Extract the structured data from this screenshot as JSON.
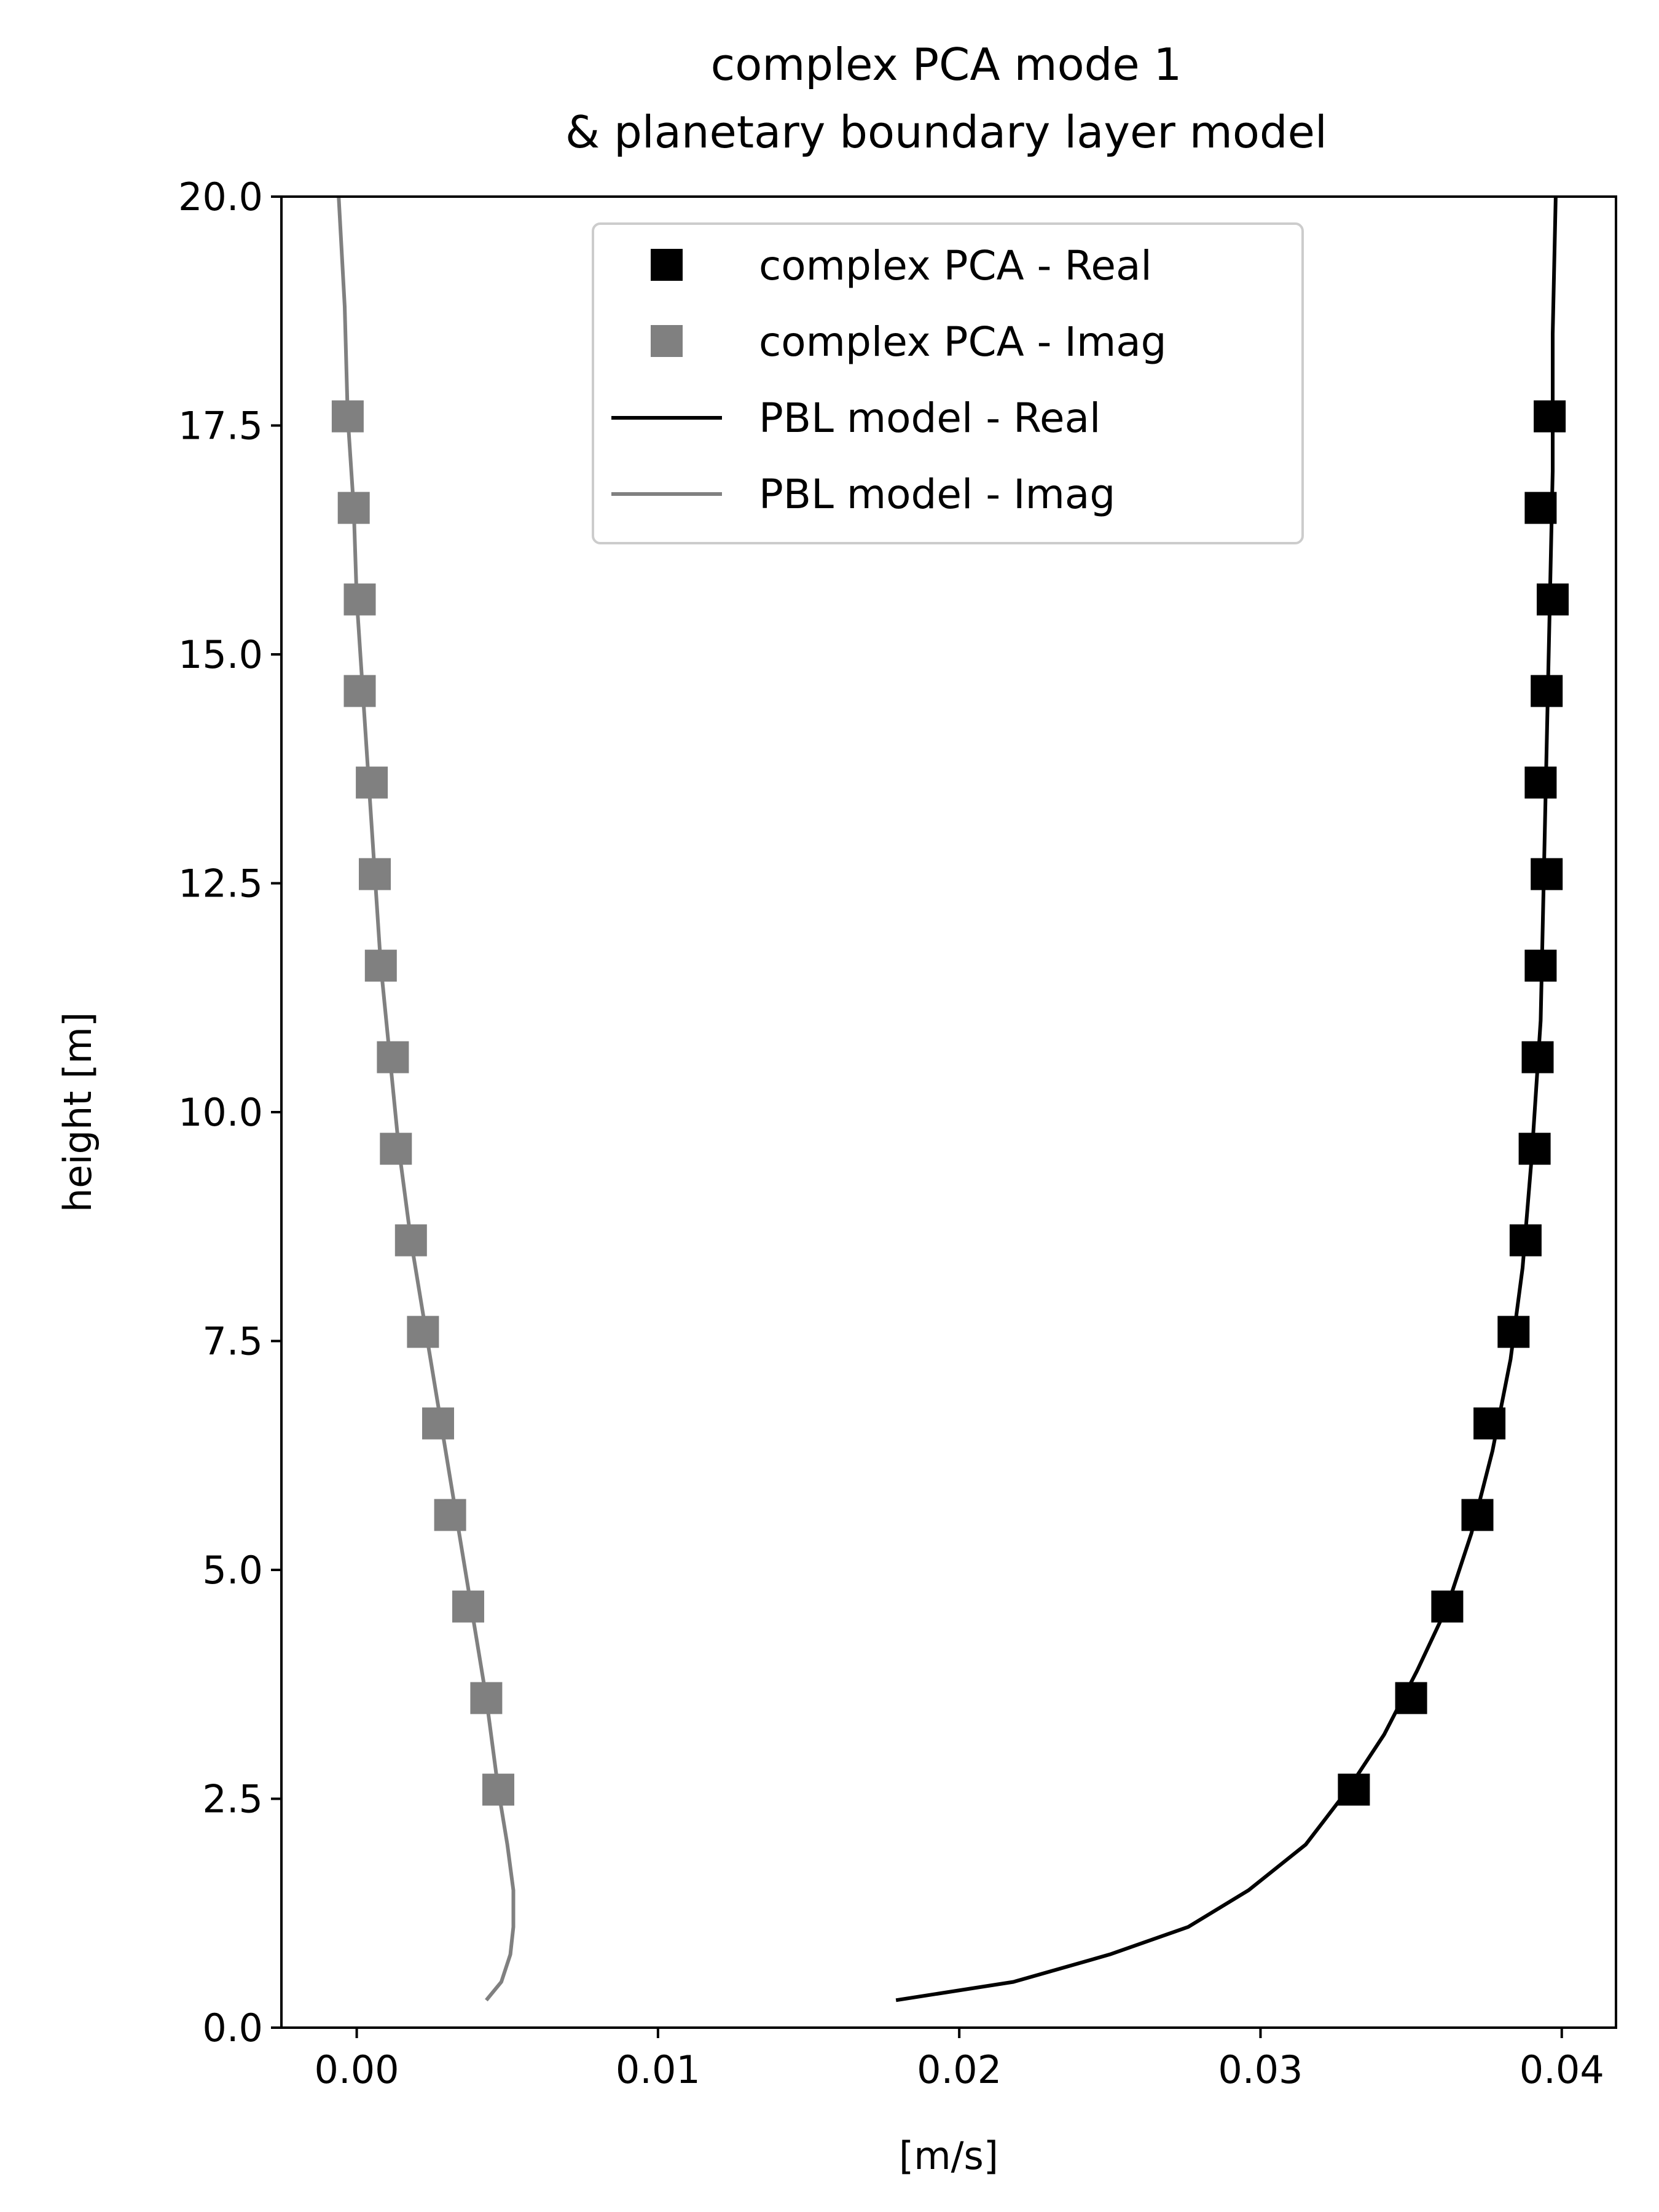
{
  "chart_data": {
    "type": "line",
    "title": [
      "complex PCA mode 1",
      "& planetary boundary layer model"
    ],
    "xlabel": "[m/s]",
    "ylabel": "height [m]",
    "xlim": [
      -0.0025,
      0.0418
    ],
    "ylim": [
      0,
      20
    ],
    "xticks": [
      0.0,
      0.01,
      0.02,
      0.03,
      0.04
    ],
    "xtick_labels": [
      "0.00",
      "0.01",
      "0.02",
      "0.03",
      "0.04"
    ],
    "yticks": [
      0,
      2.5,
      5,
      7.5,
      10,
      12.5,
      15,
      17.5,
      20
    ],
    "ytick_labels": [
      "0.0",
      "2.5",
      "5.0",
      "7.5",
      "10.0",
      "12.5",
      "15.0",
      "17.5",
      "20.0"
    ],
    "grid": false,
    "legend_position": "top-center",
    "series": [
      {
        "name": "complex PCA - Real",
        "kind": "markers",
        "marker": "square",
        "color": "#000000",
        "points": [
          {
            "x": 0.0331,
            "y": 2.6
          },
          {
            "x": 0.035,
            "y": 3.6
          },
          {
            "x": 0.0362,
            "y": 4.6
          },
          {
            "x": 0.0372,
            "y": 5.6
          },
          {
            "x": 0.0376,
            "y": 6.6
          },
          {
            "x": 0.0384,
            "y": 7.6
          },
          {
            "x": 0.0388,
            "y": 8.6
          },
          {
            "x": 0.0391,
            "y": 9.6
          },
          {
            "x": 0.0392,
            "y": 10.6
          },
          {
            "x": 0.0393,
            "y": 11.6
          },
          {
            "x": 0.0395,
            "y": 12.6
          },
          {
            "x": 0.0393,
            "y": 13.6
          },
          {
            "x": 0.0395,
            "y": 14.6
          },
          {
            "x": 0.0397,
            "y": 15.6
          },
          {
            "x": 0.0393,
            "y": 16.6
          },
          {
            "x": 0.0396,
            "y": 17.6
          }
        ]
      },
      {
        "name": "complex PCA - Imag",
        "kind": "markers",
        "marker": "square",
        "color": "#808080",
        "points": [
          {
            "x": 0.0047,
            "y": 2.6
          },
          {
            "x": 0.0043,
            "y": 3.6
          },
          {
            "x": 0.0037,
            "y": 4.6
          },
          {
            "x": 0.0031,
            "y": 5.6
          },
          {
            "x": 0.0027,
            "y": 6.6
          },
          {
            "x": 0.0022,
            "y": 7.6
          },
          {
            "x": 0.0018,
            "y": 8.6
          },
          {
            "x": 0.0013,
            "y": 9.6
          },
          {
            "x": 0.0012,
            "y": 10.6
          },
          {
            "x": 0.0008,
            "y": 11.6
          },
          {
            "x": 0.0006,
            "y": 12.6
          },
          {
            "x": 0.0005,
            "y": 13.6
          },
          {
            "x": 0.0001,
            "y": 14.6
          },
          {
            "x": 0.0001,
            "y": 15.6
          },
          {
            "x": -0.0001,
            "y": 16.6
          },
          {
            "x": -0.0003,
            "y": 17.6
          }
        ]
      },
      {
        "name": "PBL model - Real",
        "kind": "line",
        "color": "#000000",
        "points": [
          {
            "x": 0.0179,
            "y": 0.3
          },
          {
            "x": 0.0218,
            "y": 0.5
          },
          {
            "x": 0.025,
            "y": 0.8
          },
          {
            "x": 0.0276,
            "y": 1.1
          },
          {
            "x": 0.0296,
            "y": 1.5
          },
          {
            "x": 0.0315,
            "y": 2.0
          },
          {
            "x": 0.0329,
            "y": 2.6
          },
          {
            "x": 0.0341,
            "y": 3.2
          },
          {
            "x": 0.0352,
            "y": 3.9
          },
          {
            "x": 0.0362,
            "y": 4.6
          },
          {
            "x": 0.037,
            "y": 5.4
          },
          {
            "x": 0.0377,
            "y": 6.3
          },
          {
            "x": 0.0383,
            "y": 7.3
          },
          {
            "x": 0.0387,
            "y": 8.3
          },
          {
            "x": 0.039,
            "y": 9.5
          },
          {
            "x": 0.0393,
            "y": 11.0
          },
          {
            "x": 0.0394,
            "y": 12.5
          },
          {
            "x": 0.0395,
            "y": 14.0
          },
          {
            "x": 0.0396,
            "y": 15.5
          },
          {
            "x": 0.0397,
            "y": 17.0
          },
          {
            "x": 0.0397,
            "y": 18.5
          },
          {
            "x": 0.0398,
            "y": 20.0
          }
        ]
      },
      {
        "name": "PBL model - Imag",
        "kind": "line",
        "color": "#808080",
        "points": [
          {
            "x": 0.0043,
            "y": 0.3
          },
          {
            "x": 0.0048,
            "y": 0.5
          },
          {
            "x": 0.0051,
            "y": 0.8
          },
          {
            "x": 0.0052,
            "y": 1.1
          },
          {
            "x": 0.0052,
            "y": 1.5
          },
          {
            "x": 0.005,
            "y": 2.0
          },
          {
            "x": 0.0047,
            "y": 2.6
          },
          {
            "x": 0.0043,
            "y": 3.6
          },
          {
            "x": 0.0038,
            "y": 4.6
          },
          {
            "x": 0.0033,
            "y": 5.6
          },
          {
            "x": 0.0028,
            "y": 6.6
          },
          {
            "x": 0.0023,
            "y": 7.6
          },
          {
            "x": 0.0018,
            "y": 8.6
          },
          {
            "x": 0.0014,
            "y": 9.6
          },
          {
            "x": 0.0011,
            "y": 10.6
          },
          {
            "x": 0.0008,
            "y": 11.6
          },
          {
            "x": 0.0006,
            "y": 12.6
          },
          {
            "x": 0.0004,
            "y": 13.6
          },
          {
            "x": 0.0002,
            "y": 14.6
          },
          {
            "x": 0.0,
            "y": 15.6
          },
          {
            "x": -0.0001,
            "y": 16.6
          },
          {
            "x": -0.0003,
            "y": 17.6
          },
          {
            "x": -0.0004,
            "y": 18.8
          },
          {
            "x": -0.0006,
            "y": 20.0
          }
        ]
      }
    ]
  }
}
